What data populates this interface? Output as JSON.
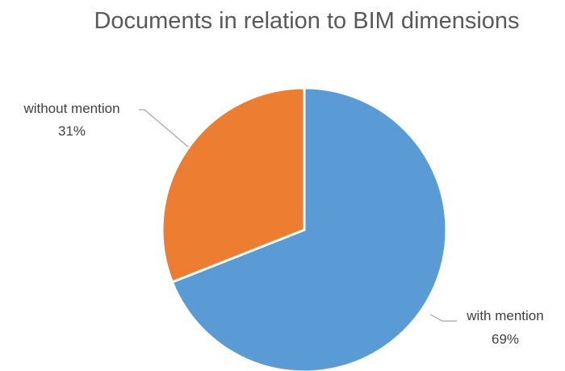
{
  "chart_data": {
    "type": "pie",
    "title": "Documents in relation to BIM dimensions",
    "slices": [
      {
        "label": "with mention",
        "value": 69,
        "display": "69%",
        "color": "#5B9BD5"
      },
      {
        "label": "without mention",
        "value": 31,
        "display": "31%",
        "color": "#ED7D31"
      }
    ],
    "start_angle_deg": 0,
    "direction": "clockwise",
    "legend": "none",
    "labels": "outside with leader lines"
  }
}
